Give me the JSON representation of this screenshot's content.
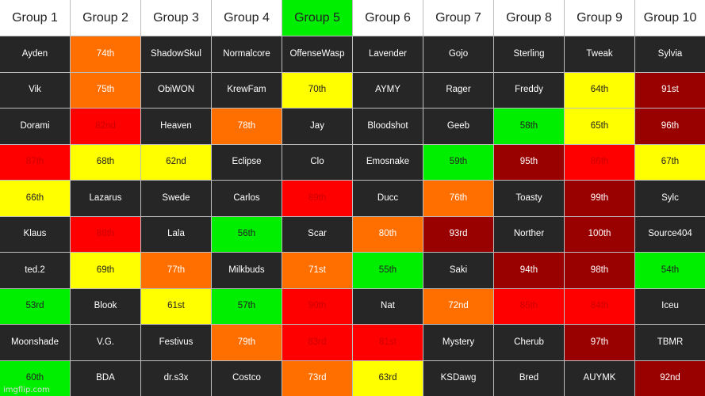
{
  "colors": {
    "dark": "#262626",
    "orange": "#ff6f00",
    "red": "#ff0000",
    "darkred": "#990000",
    "green": "#00ee00",
    "yellow": "#ffff00",
    "header": "#ffffff",
    "header_highlight": "#00ee00"
  },
  "headers": [
    {
      "label": "Group 1",
      "style": "header"
    },
    {
      "label": "Group 2",
      "style": "header"
    },
    {
      "label": "Group 3",
      "style": "header"
    },
    {
      "label": "Group 4",
      "style": "header"
    },
    {
      "label": "Group 5",
      "style": "header_highlight"
    },
    {
      "label": "Group 6",
      "style": "header"
    },
    {
      "label": "Group 7",
      "style": "header"
    },
    {
      "label": "Group 8",
      "style": "header"
    },
    {
      "label": "Group 9",
      "style": "header"
    },
    {
      "label": "Group 10",
      "style": "header"
    }
  ],
  "rows": [
    [
      {
        "text": "Ayden",
        "style": "dark"
      },
      {
        "text": "74th",
        "style": "orange"
      },
      {
        "text": "ShadowSkul",
        "style": "dark"
      },
      {
        "text": "Normalcore",
        "style": "dark"
      },
      {
        "text": "OffenseWasp",
        "style": "dark"
      },
      {
        "text": "Lavender",
        "style": "dark"
      },
      {
        "text": "Gojo",
        "style": "dark"
      },
      {
        "text": "Sterling",
        "style": "dark"
      },
      {
        "text": "Tweak",
        "style": "dark"
      },
      {
        "text": "Sylvia",
        "style": "dark"
      }
    ],
    [
      {
        "text": "Vik",
        "style": "dark"
      },
      {
        "text": "75th",
        "style": "orange"
      },
      {
        "text": "ObiWON",
        "style": "dark"
      },
      {
        "text": "KrewFam",
        "style": "dark"
      },
      {
        "text": "70th",
        "style": "yellow"
      },
      {
        "text": "AYMY",
        "style": "dark"
      },
      {
        "text": "Rager",
        "style": "dark"
      },
      {
        "text": "Freddy",
        "style": "dark"
      },
      {
        "text": "64th",
        "style": "yellow"
      },
      {
        "text": "91st",
        "style": "darkred"
      }
    ],
    [
      {
        "text": "Dorami",
        "style": "dark"
      },
      {
        "text": "82nd",
        "style": "red"
      },
      {
        "text": "Heaven",
        "style": "dark"
      },
      {
        "text": "78th",
        "style": "orange"
      },
      {
        "text": "Jay",
        "style": "dark"
      },
      {
        "text": "Bloodshot",
        "style": "dark"
      },
      {
        "text": "Geeb",
        "style": "dark"
      },
      {
        "text": "58th",
        "style": "green"
      },
      {
        "text": "65th",
        "style": "yellow"
      },
      {
        "text": "96th",
        "style": "darkred"
      }
    ],
    [
      {
        "text": "87th",
        "style": "red"
      },
      {
        "text": "68th",
        "style": "yellow"
      },
      {
        "text": "62nd",
        "style": "yellow"
      },
      {
        "text": "Eclipse",
        "style": "dark"
      },
      {
        "text": "Clo",
        "style": "dark"
      },
      {
        "text": "Emosnake",
        "style": "dark"
      },
      {
        "text": "59th",
        "style": "green"
      },
      {
        "text": "95th",
        "style": "darkred"
      },
      {
        "text": "86th",
        "style": "red"
      },
      {
        "text": "67th",
        "style": "yellow"
      }
    ],
    [
      {
        "text": "66th",
        "style": "yellow"
      },
      {
        "text": "Lazarus",
        "style": "dark"
      },
      {
        "text": "Swede",
        "style": "dark"
      },
      {
        "text": "Carlos",
        "style": "dark"
      },
      {
        "text": "89th",
        "style": "red"
      },
      {
        "text": "Ducc",
        "style": "dark"
      },
      {
        "text": "76th",
        "style": "orange"
      },
      {
        "text": "Toasty",
        "style": "dark"
      },
      {
        "text": "99th",
        "style": "darkred"
      },
      {
        "text": "Sylc",
        "style": "dark"
      }
    ],
    [
      {
        "text": "Klaus",
        "style": "dark"
      },
      {
        "text": "88th",
        "style": "red"
      },
      {
        "text": "Lala",
        "style": "dark"
      },
      {
        "text": "56th",
        "style": "green"
      },
      {
        "text": "Scar",
        "style": "dark"
      },
      {
        "text": "80th",
        "style": "orange"
      },
      {
        "text": "93rd",
        "style": "darkred"
      },
      {
        "text": "Norther",
        "style": "dark"
      },
      {
        "text": "100th",
        "style": "darkred"
      },
      {
        "text": "Source404",
        "style": "dark"
      }
    ],
    [
      {
        "text": "ted.2",
        "style": "dark"
      },
      {
        "text": "69th",
        "style": "yellow"
      },
      {
        "text": "77th",
        "style": "orange"
      },
      {
        "text": "Milkbuds",
        "style": "dark"
      },
      {
        "text": "71st",
        "style": "orange"
      },
      {
        "text": "55th",
        "style": "green"
      },
      {
        "text": "Saki",
        "style": "dark"
      },
      {
        "text": "94th",
        "style": "darkred"
      },
      {
        "text": "98th",
        "style": "darkred"
      },
      {
        "text": "54th",
        "style": "green"
      }
    ],
    [
      {
        "text": "53rd",
        "style": "green"
      },
      {
        "text": "Blook",
        "style": "dark"
      },
      {
        "text": "61st",
        "style": "yellow"
      },
      {
        "text": "57th",
        "style": "green"
      },
      {
        "text": "90th",
        "style": "red"
      },
      {
        "text": "Nat",
        "style": "dark"
      },
      {
        "text": "72nd",
        "style": "orange"
      },
      {
        "text": "85th",
        "style": "red"
      },
      {
        "text": "84th",
        "style": "red"
      },
      {
        "text": "Iceu",
        "style": "dark"
      }
    ],
    [
      {
        "text": "Moonshade",
        "style": "dark"
      },
      {
        "text": "V.G.",
        "style": "dark"
      },
      {
        "text": "Festivus",
        "style": "dark"
      },
      {
        "text": "79th",
        "style": "orange"
      },
      {
        "text": "83rd",
        "style": "red"
      },
      {
        "text": "81st",
        "style": "red"
      },
      {
        "text": "Mystery",
        "style": "dark"
      },
      {
        "text": "Cherub",
        "style": "dark"
      },
      {
        "text": "97th",
        "style": "darkred"
      },
      {
        "text": "TBMR",
        "style": "dark"
      }
    ],
    [
      {
        "text": "60th",
        "style": "green"
      },
      {
        "text": "BDA",
        "style": "dark"
      },
      {
        "text": "dr.s3x",
        "style": "dark"
      },
      {
        "text": "Costco",
        "style": "dark"
      },
      {
        "text": "73rd",
        "style": "orange"
      },
      {
        "text": "63rd",
        "style": "yellow"
      },
      {
        "text": "KSDawg",
        "style": "dark"
      },
      {
        "text": "Bred",
        "style": "dark"
      },
      {
        "text": "AUYMK",
        "style": "dark"
      },
      {
        "text": "92nd",
        "style": "darkred"
      }
    ]
  ],
  "watermark": "imgflip.com"
}
